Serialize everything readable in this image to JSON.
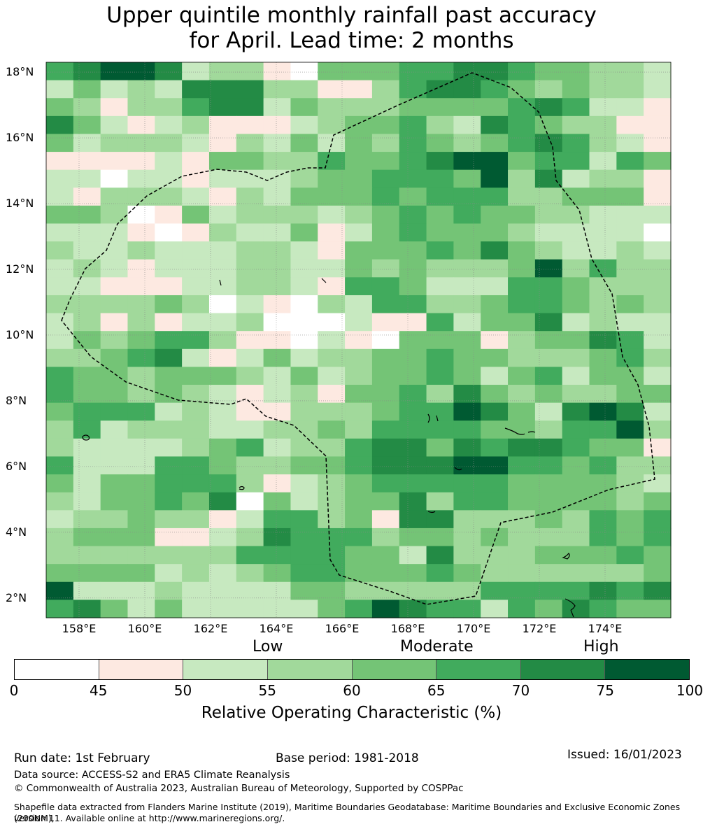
{
  "title": {
    "line1": "Upper quintile monthly rainfall past accuracy",
    "line2": "for April. Lead time: 2 months"
  },
  "map": {
    "lon_range": [
      157,
      176
    ],
    "lat_range": [
      1.4,
      18.3
    ],
    "x_ticks": [
      "158°E",
      "160°E",
      "162°E",
      "164°E",
      "166°E",
      "168°E",
      "170°E",
      "172°E",
      "174°E"
    ],
    "y_ticks": [
      "18°N",
      "16°N",
      "14°N",
      "12°N",
      "10°N",
      "8°N",
      "6°N",
      "4°N",
      "2°N"
    ],
    "grid_columns": 23,
    "grid_rows": 31,
    "cell_classes": [
      "56776233104445566544332",
      "24232666331135665434332",
      "43133566243334444565221",
      "64212311123445326543311",
      "42333213242435434565321",
      "11112144335445677455254",
      "22022122234455547362331",
      "21333213244454555334441",
      "44301423332345454433222",
      "22210132241245444322220",
      "32232223321444546432232",
      "23212223322434333473533",
      "22111223321554222554333",
      "33334302103255334554343",
      "23131223000211524462322",
      "24345531102104441344652",
      "33456212423344544333453",
      "54434443242344542452442",
      "54434321231445364343344",
      "45552321133345576426762",
      "35233322334355554435573",
      "32222345233566465665441",
      "52225543344566677554533",
      "42445553123455555444432",
      "32445460423446355444434",
      "23343312553416633343545",
      "34441123655534434333545",
      "33333335555442633344454",
      "44442323455444543333334",
      "72223222244333335555656",
      "56424222224576552546544"
    ],
    "palette": [
      "#ffffff",
      "#fde9e1",
      "#c7e9c0",
      "#a1d99b",
      "#74c476",
      "#41ab5d",
      "#238b45",
      "#005a32"
    ]
  },
  "categories": {
    "low": "Low",
    "moderate": "Moderate",
    "high": "High"
  },
  "colorbar": {
    "ticks": [
      "0",
      "45",
      "50",
      "55",
      "60",
      "65",
      "70",
      "75",
      "100"
    ],
    "colors": [
      "#ffffff",
      "#fde9e1",
      "#c7e9c0",
      "#a1d99b",
      "#74c476",
      "#41ab5d",
      "#238b45",
      "#005a32"
    ],
    "label": "Relative Operating Characteristic (%)"
  },
  "footer": {
    "run_date": "Run date: 1st February",
    "base_period": "Base period: 1981-2018",
    "issued": "Issued: 16/01/2023",
    "data_source": "Data source: ACCESS-S2 and ERA5 Climate Reanalysis",
    "copyright": "© Commonwealth of Australia 2023, Australian Bureau of Meteorology, Supported by COSPPac",
    "shapefile_line1": "Shapefile data extracted from Flanders Marine Institute (2019), Maritime Boundaries Geodatabase: Maritime Boundaries and Exclusive Economic Zones (200NM),",
    "shapefile_line2": "version 11. Available online at http://www.marineregions.org/."
  }
}
